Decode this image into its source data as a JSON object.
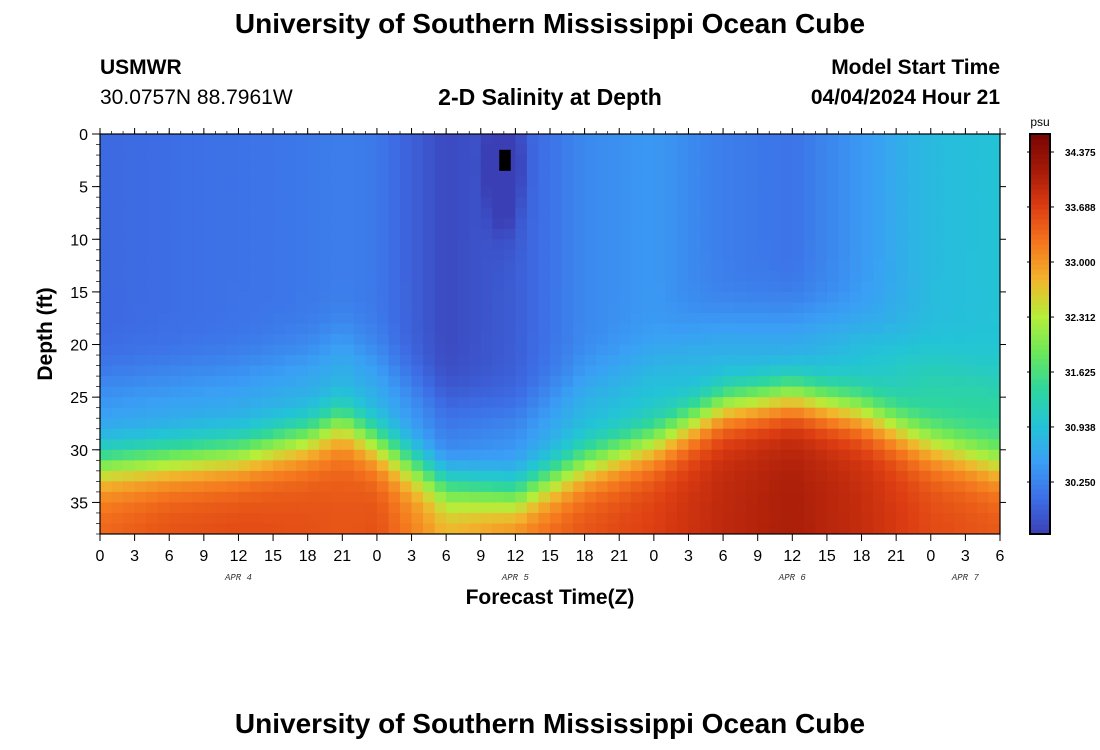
{
  "page": {
    "title_top": "University of Southern Mississippi Ocean Cube",
    "title_bottom": "University of Southern Mississippi Ocean Cube",
    "station": "USMWR",
    "coords": "30.0757N  88.7961W",
    "chart_title": "2-D Salinity at Depth",
    "model_start_label": "Model Start Time",
    "model_start_value": "04/04/2024 Hour 21"
  },
  "chart_data": {
    "type": "heatmap",
    "title": "2-D Salinity at Depth",
    "xlabel": "Forecast Time(Z)",
    "ylabel": "Depth (ft)",
    "xlim": [
      0,
      78
    ],
    "ylim": [
      0,
      38
    ],
    "y_inverted": true,
    "x_tick_hours": [
      0,
      3,
      6,
      9,
      12,
      15,
      18,
      21,
      24,
      27,
      30,
      33,
      36,
      39,
      42,
      45,
      48,
      51,
      54,
      57,
      60,
      63,
      66,
      69,
      72,
      75,
      78
    ],
    "x_tick_labels": [
      "0",
      "3",
      "6",
      "9",
      "12",
      "15",
      "18",
      "21",
      "0",
      "3",
      "6",
      "9",
      "12",
      "15",
      "18",
      "21",
      "0",
      "3",
      "6",
      "9",
      "12",
      "15",
      "18",
      "21",
      "0",
      "3",
      "6"
    ],
    "y_ticks": [
      0,
      5,
      10,
      15,
      20,
      25,
      30,
      35
    ],
    "day_labels": [
      {
        "label": "APR 4",
        "hour": 12
      },
      {
        "label": "APR 5",
        "hour": 36
      },
      {
        "label": "APR 6",
        "hour": 60
      },
      {
        "label": "APR 7",
        "hour": 75
      }
    ],
    "colorbar": {
      "unit": "psu",
      "min": 29.6,
      "max": 34.6,
      "ticks": [
        34.375,
        33.688,
        33.0,
        32.312,
        31.625,
        30.938,
        30.25
      ],
      "tick_labels": [
        "34.375",
        "33.688",
        "33.000",
        "32.312",
        "31.625",
        "30.938",
        "30.250"
      ],
      "colors": [
        "#3b3fb5",
        "#3d6ee6",
        "#3a9ff5",
        "#23c4d6",
        "#2ed69d",
        "#6ce85a",
        "#b6ee3a",
        "#f2b52c",
        "#f5781e",
        "#dd3d12",
        "#a51a08",
        "#7a0404"
      ]
    },
    "grid_hours_step": 1,
    "grid_depth_step": 1,
    "field": {
      "description_keys": [
        "hours",
        "halocline_depth",
        "surface_salinity"
      ],
      "hours": [
        0,
        6,
        12,
        18,
        21,
        24,
        30,
        36,
        42,
        48,
        54,
        60,
        66,
        72,
        78
      ],
      "halocline_depth_ft": [
        31,
        30.5,
        30,
        28.5,
        27,
        29,
        33,
        34,
        31,
        29,
        25.5,
        24.5,
        26,
        29,
        31
      ],
      "surface_salinity_psu": [
        30.0,
        30.05,
        30.1,
        30.15,
        30.2,
        30.15,
        29.7,
        29.9,
        30.3,
        30.45,
        30.2,
        30.1,
        30.45,
        30.85,
        30.95
      ],
      "bottom_salinity_psu": [
        33.4,
        33.55,
        33.6,
        33.55,
        33.5,
        33.55,
        32.9,
        33.3,
        33.55,
        33.7,
        33.95,
        34.1,
        33.9,
        33.6,
        33.5
      ],
      "low_salinity_core": {
        "hour": 35,
        "depth_ft": 3,
        "value_psu": 29.6
      }
    }
  }
}
